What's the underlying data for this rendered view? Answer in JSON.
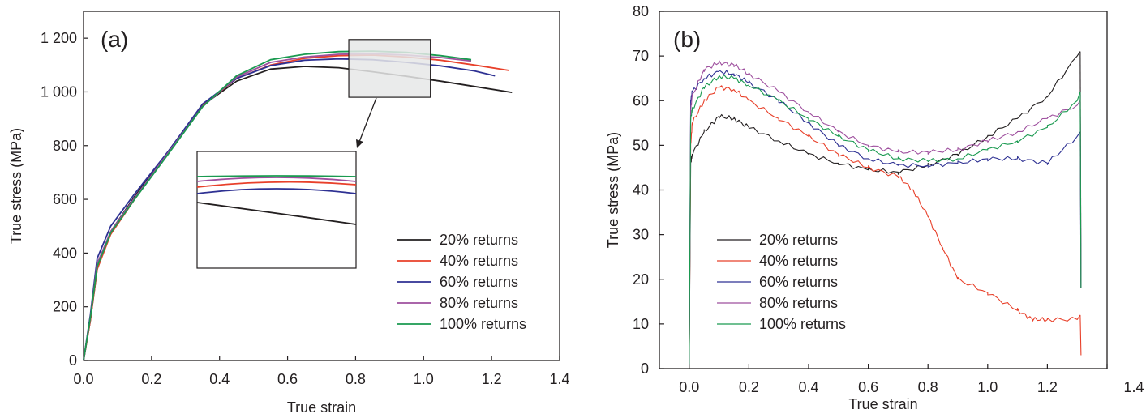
{
  "colors": {
    "20% returns": "#231f20",
    "40% returns": "#e8402a",
    "60% returns": "#2e3193",
    "80% returns": "#9e4f9e",
    "100% returns": "#1a9a50"
  },
  "chart_data": [
    {
      "type": "line",
      "panel_label": "(a)",
      "xlabel": "True strain",
      "ylabel": "True stress (MPa)",
      "xlim": [
        0.0,
        1.4
      ],
      "ylim": [
        0,
        1300
      ],
      "xticks": [
        "0.0",
        "0.2",
        "0.4",
        "0.6",
        "0.8",
        "1.0",
        "1.2",
        "1.4"
      ],
      "yticks": [
        "0",
        "200",
        "400",
        "600",
        "800",
        "1 000",
        "1 200"
      ],
      "legend_position": "lower-right",
      "inset": {
        "zoom_region_x": [
          0.78,
          1.02
        ],
        "zoom_region_y": [
          980,
          1195
        ],
        "description_arrow": true
      },
      "series": [
        {
          "name": "20% returns",
          "x": [
            0,
            0.02,
            0.04,
            0.08,
            0.15,
            0.25,
            0.35,
            0.45,
            0.55,
            0.65,
            0.75,
            0.85,
            0.95,
            1.05,
            1.15,
            1.26
          ],
          "y": [
            0,
            150,
            340,
            480,
            610,
            780,
            950,
            1040,
            1085,
            1095,
            1090,
            1075,
            1058,
            1040,
            1020,
            998
          ]
        },
        {
          "name": "40% returns",
          "x": [
            0,
            0.02,
            0.04,
            0.08,
            0.15,
            0.25,
            0.35,
            0.45,
            0.55,
            0.65,
            0.75,
            0.85,
            0.95,
            1.05,
            1.15,
            1.25
          ],
          "y": [
            0,
            150,
            340,
            470,
            600,
            775,
            950,
            1050,
            1100,
            1125,
            1135,
            1137,
            1130,
            1118,
            1100,
            1080
          ]
        },
        {
          "name": "60% returns",
          "x": [
            0,
            0.02,
            0.04,
            0.08,
            0.15,
            0.25,
            0.35,
            0.45,
            0.55,
            0.65,
            0.75,
            0.85,
            0.95,
            1.05,
            1.15,
            1.21
          ],
          "y": [
            0,
            170,
            380,
            500,
            620,
            780,
            955,
            1050,
            1098,
            1118,
            1123,
            1120,
            1110,
            1097,
            1078,
            1060
          ]
        },
        {
          "name": "80% returns",
          "x": [
            0,
            0.02,
            0.04,
            0.08,
            0.15,
            0.25,
            0.35,
            0.45,
            0.55,
            0.65,
            0.75,
            0.85,
            0.95,
            1.05,
            1.14
          ],
          "y": [
            0,
            160,
            360,
            480,
            605,
            775,
            945,
            1055,
            1110,
            1130,
            1140,
            1142,
            1137,
            1128,
            1115
          ]
        },
        {
          "name": "100% returns",
          "x": [
            0,
            0.02,
            0.04,
            0.08,
            0.15,
            0.25,
            0.35,
            0.45,
            0.55,
            0.65,
            0.75,
            0.85,
            0.95,
            1.05,
            1.14
          ],
          "y": [
            0,
            160,
            350,
            475,
            600,
            770,
            945,
            1060,
            1120,
            1140,
            1150,
            1152,
            1147,
            1135,
            1120
          ]
        }
      ]
    },
    {
      "type": "line",
      "panel_label": "(b)",
      "xlabel": "True strain",
      "ylabel": "True stress (MPa)",
      "xlim": [
        -0.1,
        1.4
      ],
      "ylim": [
        0,
        80
      ],
      "xticks": [
        "0.0",
        "0.2",
        "0.4",
        "0.6",
        "0.8",
        "1.0",
        "1.2",
        "1.4"
      ],
      "yticks": [
        "0",
        "10",
        "20",
        "30",
        "40",
        "50",
        "60",
        "70",
        "80"
      ],
      "legend_position": "lower-left",
      "series": [
        {
          "name": "20% returns",
          "x": [
            0.0,
            0.005,
            0.01,
            0.05,
            0.1,
            0.15,
            0.2,
            0.3,
            0.4,
            0.5,
            0.6,
            0.7,
            0.8,
            0.9,
            1.0,
            1.1,
            1.2,
            1.3,
            1.31
          ],
          "y": [
            1,
            46,
            48,
            53,
            56.5,
            56,
            54,
            51,
            48,
            46,
            44.5,
            44,
            45.5,
            48,
            52,
            56,
            61,
            70,
            71
          ]
        },
        {
          "name": "40% returns",
          "x": [
            0.0,
            0.005,
            0.01,
            0.05,
            0.1,
            0.15,
            0.2,
            0.3,
            0.4,
            0.5,
            0.6,
            0.7,
            0.75,
            0.8,
            0.85,
            0.9,
            1.0,
            1.1,
            1.15,
            1.2,
            1.3,
            1.31
          ],
          "y": [
            1,
            50,
            55,
            60,
            63,
            62.5,
            60,
            56,
            52,
            48,
            45,
            43,
            40,
            34,
            27,
            20,
            17,
            13,
            11,
            11,
            11,
            12
          ]
        },
        {
          "name": "60% returns",
          "x": [
            0.0,
            0.005,
            0.01,
            0.05,
            0.1,
            0.15,
            0.2,
            0.3,
            0.4,
            0.5,
            0.6,
            0.7,
            0.8,
            0.9,
            1.0,
            1.1,
            1.2,
            1.3,
            1.31
          ],
          "y": [
            1,
            60,
            62,
            65,
            66.5,
            66,
            64,
            60,
            55,
            50,
            47,
            45.5,
            45.5,
            46,
            47,
            47,
            46,
            52,
            53
          ]
        },
        {
          "name": "80% returns",
          "x": [
            0.0,
            0.005,
            0.01,
            0.05,
            0.1,
            0.15,
            0.2,
            0.3,
            0.4,
            0.5,
            0.6,
            0.7,
            0.8,
            0.9,
            1.0,
            1.1,
            1.2,
            1.3,
            1.31
          ],
          "y": [
            1,
            58,
            61,
            67,
            68.5,
            68,
            66,
            62,
            57.5,
            53,
            50,
            48.5,
            48.5,
            49,
            51,
            53,
            56,
            59,
            60
          ]
        },
        {
          "name": "100% returns",
          "x": [
            0.0,
            0.005,
            0.01,
            0.05,
            0.1,
            0.15,
            0.2,
            0.3,
            0.4,
            0.5,
            0.6,
            0.7,
            0.8,
            0.9,
            1.0,
            1.1,
            1.2,
            1.3,
            1.31
          ],
          "y": [
            1,
            56,
            58,
            63,
            65.5,
            65,
            63.5,
            60,
            56,
            52,
            49,
            47,
            46.5,
            47,
            49,
            51,
            54,
            60,
            62
          ]
        }
      ]
    }
  ]
}
